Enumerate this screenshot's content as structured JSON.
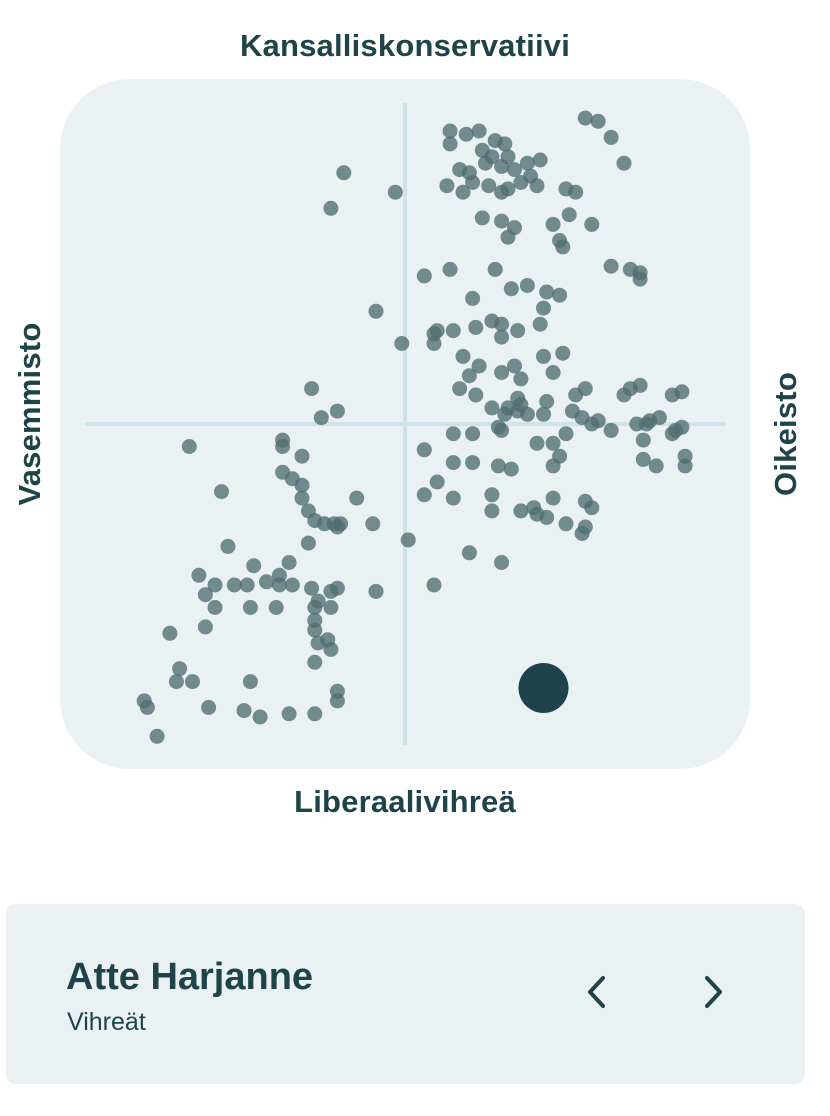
{
  "chart_data": {
    "type": "scatter",
    "xlabel_left": "Vasemmisto",
    "xlabel_right": "Oikeisto",
    "ylabel_top": "Kansalliskonservatiivi",
    "ylabel_bottom": "Liberaalivihreä",
    "xlim": [
      -1,
      1
    ],
    "ylim": [
      -1,
      1
    ],
    "grid": false,
    "colors": {
      "panel": "#e9f1f3",
      "axis_lines": "#cde3e7",
      "points": "#4f6d6f",
      "highlight": "#1e434a"
    },
    "points": [
      [
        0.14,
        0.91
      ],
      [
        0.19,
        0.9
      ],
      [
        0.23,
        0.91
      ],
      [
        0.28,
        0.88
      ],
      [
        0.31,
        0.87
      ],
      [
        0.56,
        0.95
      ],
      [
        0.6,
        0.94
      ],
      [
        0.64,
        0.89
      ],
      [
        0.14,
        0.87
      ],
      [
        0.24,
        0.85
      ],
      [
        0.27,
        0.83
      ],
      [
        0.32,
        0.83
      ],
      [
        0.38,
        0.81
      ],
      [
        0.42,
        0.82
      ],
      [
        0.68,
        0.81
      ],
      [
        -0.19,
        0.78
      ],
      [
        0.17,
        0.79
      ],
      [
        0.2,
        0.78
      ],
      [
        0.25,
        0.81
      ],
      [
        0.3,
        0.8
      ],
      [
        0.34,
        0.79
      ],
      [
        0.39,
        0.77
      ],
      [
        0.13,
        0.74
      ],
      [
        0.18,
        0.72
      ],
      [
        0.21,
        0.75
      ],
      [
        0.26,
        0.74
      ],
      [
        0.3,
        0.72
      ],
      [
        0.32,
        0.73
      ],
      [
        0.36,
        0.75
      ],
      [
        0.41,
        0.74
      ],
      [
        0.5,
        0.73
      ],
      [
        0.53,
        0.72
      ],
      [
        -0.03,
        0.72
      ],
      [
        -0.23,
        0.67
      ],
      [
        0.24,
        0.64
      ],
      [
        0.3,
        0.63
      ],
      [
        0.34,
        0.61
      ],
      [
        0.32,
        0.58
      ],
      [
        0.51,
        0.65
      ],
      [
        0.46,
        0.62
      ],
      [
        0.58,
        0.62
      ],
      [
        0.48,
        0.57
      ],
      [
        0.49,
        0.55
      ],
      [
        0.64,
        0.49
      ],
      [
        0.44,
        0.41
      ],
      [
        0.48,
        0.4
      ],
      [
        0.7,
        0.48
      ],
      [
        0.73,
        0.47
      ],
      [
        0.73,
        0.45
      ],
      [
        0.06,
        0.46
      ],
      [
        0.14,
        0.48
      ],
      [
        0.28,
        0.48
      ],
      [
        0.38,
        0.43
      ],
      [
        0.21,
        0.39
      ],
      [
        0.33,
        0.42
      ],
      [
        0.43,
        0.36
      ],
      [
        -0.09,
        0.35
      ],
      [
        0.09,
        0.28
      ],
      [
        0.1,
        0.29
      ],
      [
        0.15,
        0.29
      ],
      [
        0.22,
        0.3
      ],
      [
        0.27,
        0.32
      ],
      [
        0.3,
        0.31
      ],
      [
        0.35,
        0.29
      ],
      [
        0.42,
        0.31
      ],
      [
        0.09,
        0.25
      ],
      [
        0.3,
        0.27
      ],
      [
        0.18,
        0.21
      ],
      [
        0.3,
        0.16
      ],
      [
        0.43,
        0.21
      ],
      [
        0.49,
        0.22
      ],
      [
        -0.01,
        0.25
      ],
      [
        0.23,
        0.18
      ],
      [
        0.2,
        0.15
      ],
      [
        0.34,
        0.18
      ],
      [
        0.36,
        0.14
      ],
      [
        0.46,
        0.16
      ],
      [
        0.44,
        0.07
      ],
      [
        0.17,
        0.11
      ],
      [
        0.22,
        0.09
      ],
      [
        0.35,
        0.08
      ],
      [
        0.53,
        0.09
      ],
      [
        0.56,
        0.11
      ],
      [
        0.68,
        0.09
      ],
      [
        0.7,
        0.11
      ],
      [
        0.73,
        0.12
      ],
      [
        0.27,
        0.05
      ],
      [
        0.31,
        0.03
      ],
      [
        0.32,
        0.05
      ],
      [
        0.35,
        0.04
      ],
      [
        0.36,
        0.06
      ],
      [
        0.38,
        0.03
      ],
      [
        0.43,
        0.03
      ],
      [
        0.52,
        0.04
      ],
      [
        0.55,
        0.02
      ],
      [
        0.58,
        0.0
      ],
      [
        0.6,
        0.01
      ],
      [
        0.72,
        0.0
      ],
      [
        0.75,
        0.0
      ],
      [
        0.76,
        0.01
      ],
      [
        0.79,
        0.02
      ],
      [
        0.83,
        0.09
      ],
      [
        0.86,
        0.1
      ],
      [
        -0.29,
        0.11
      ],
      [
        -0.21,
        0.04
      ],
      [
        -0.26,
        0.02
      ],
      [
        0.15,
        -0.03
      ],
      [
        0.21,
        -0.03
      ],
      [
        0.29,
        -0.01
      ],
      [
        0.3,
        -0.02
      ],
      [
        0.41,
        -0.06
      ],
      [
        0.46,
        -0.06
      ],
      [
        0.5,
        -0.03
      ],
      [
        0.64,
        -0.02
      ],
      [
        0.83,
        -0.03
      ],
      [
        0.84,
        -0.02
      ],
      [
        0.86,
        -0.01
      ],
      [
        0.74,
        -0.05
      ],
      [
        -0.38,
        -0.05
      ],
      [
        -0.38,
        -0.07
      ],
      [
        -0.67,
        -0.07
      ],
      [
        -0.32,
        -0.1
      ],
      [
        0.06,
        -0.08
      ],
      [
        0.15,
        -0.12
      ],
      [
        0.21,
        -0.12
      ],
      [
        0.29,
        -0.13
      ],
      [
        0.33,
        -0.14
      ],
      [
        0.48,
        -0.1
      ],
      [
        0.46,
        -0.13
      ],
      [
        0.74,
        -0.11
      ],
      [
        0.78,
        -0.13
      ],
      [
        0.87,
        -0.1
      ],
      [
        0.87,
        -0.13
      ],
      [
        -0.38,
        -0.15
      ],
      [
        -0.35,
        -0.17
      ],
      [
        -0.32,
        -0.19
      ],
      [
        0.1,
        -0.18
      ],
      [
        0.15,
        -0.23
      ],
      [
        -0.57,
        -0.21
      ],
      [
        -0.32,
        -0.23
      ],
      [
        -0.15,
        -0.23
      ],
      [
        0.06,
        -0.22
      ],
      [
        0.27,
        -0.22
      ],
      [
        0.46,
        -0.23
      ],
      [
        0.36,
        -0.27
      ],
      [
        0.4,
        -0.26
      ],
      [
        0.56,
        -0.24
      ],
      [
        0.58,
        -0.26
      ],
      [
        -0.3,
        -0.27
      ],
      [
        -0.28,
        -0.3
      ],
      [
        -0.25,
        -0.31
      ],
      [
        -0.22,
        -0.31
      ],
      [
        -0.2,
        -0.31
      ],
      [
        -0.21,
        -0.32
      ],
      [
        -0.1,
        -0.31
      ],
      [
        0.27,
        -0.27
      ],
      [
        0.41,
        -0.28
      ],
      [
        0.44,
        -0.29
      ],
      [
        0.5,
        -0.31
      ],
      [
        0.55,
        -0.34
      ],
      [
        0.56,
        -0.32
      ],
      [
        -0.3,
        -0.37
      ],
      [
        0.01,
        -0.36
      ],
      [
        0.2,
        -0.4
      ],
      [
        0.3,
        -0.43
      ],
      [
        -0.47,
        -0.44
      ],
      [
        -0.55,
        -0.38
      ],
      [
        -0.36,
        -0.43
      ],
      [
        -0.39,
        -0.47
      ],
      [
        -0.39,
        -0.5
      ],
      [
        -0.43,
        -0.49
      ],
      [
        -0.49,
        -0.5
      ],
      [
        -0.53,
        -0.5
      ],
      [
        -0.59,
        -0.5
      ],
      [
        -0.35,
        -0.5
      ],
      [
        -0.29,
        -0.51
      ],
      [
        -0.21,
        -0.51
      ],
      [
        -0.09,
        -0.52
      ],
      [
        -0.23,
        -0.52
      ],
      [
        0.09,
        -0.5
      ],
      [
        -0.64,
        -0.47
      ],
      [
        -0.62,
        -0.53
      ],
      [
        -0.59,
        -0.57
      ],
      [
        -0.48,
        -0.57
      ],
      [
        -0.4,
        -0.57
      ],
      [
        -0.28,
        -0.57
      ],
      [
        -0.28,
        -0.61
      ],
      [
        -0.27,
        -0.55
      ],
      [
        -0.23,
        -0.57
      ],
      [
        -0.62,
        -0.63
      ],
      [
        -0.73,
        -0.65
      ],
      [
        -0.28,
        -0.64
      ],
      [
        -0.27,
        -0.68
      ],
      [
        -0.24,
        -0.67
      ],
      [
        -0.23,
        -0.7
      ],
      [
        -0.28,
        -0.74
      ],
      [
        -0.7,
        -0.76
      ],
      [
        -0.66,
        -0.8
      ],
      [
        -0.71,
        -0.8
      ],
      [
        -0.48,
        -0.8
      ],
      [
        -0.81,
        -0.86
      ],
      [
        -0.8,
        -0.88
      ],
      [
        -0.61,
        -0.88
      ],
      [
        -0.5,
        -0.89
      ],
      [
        -0.45,
        -0.91
      ],
      [
        -0.36,
        -0.9
      ],
      [
        -0.28,
        -0.9
      ],
      [
        -0.21,
        -0.86
      ],
      [
        -0.21,
        -0.83
      ],
      [
        -0.77,
        -0.97
      ]
    ],
    "highlighted_point": [
      0.43,
      -0.82
    ]
  },
  "candidate": {
    "name": "Atte Harjanne",
    "party": "Vihreät"
  },
  "icons": {
    "prev": "chevron-left-icon",
    "next": "chevron-right-icon"
  }
}
